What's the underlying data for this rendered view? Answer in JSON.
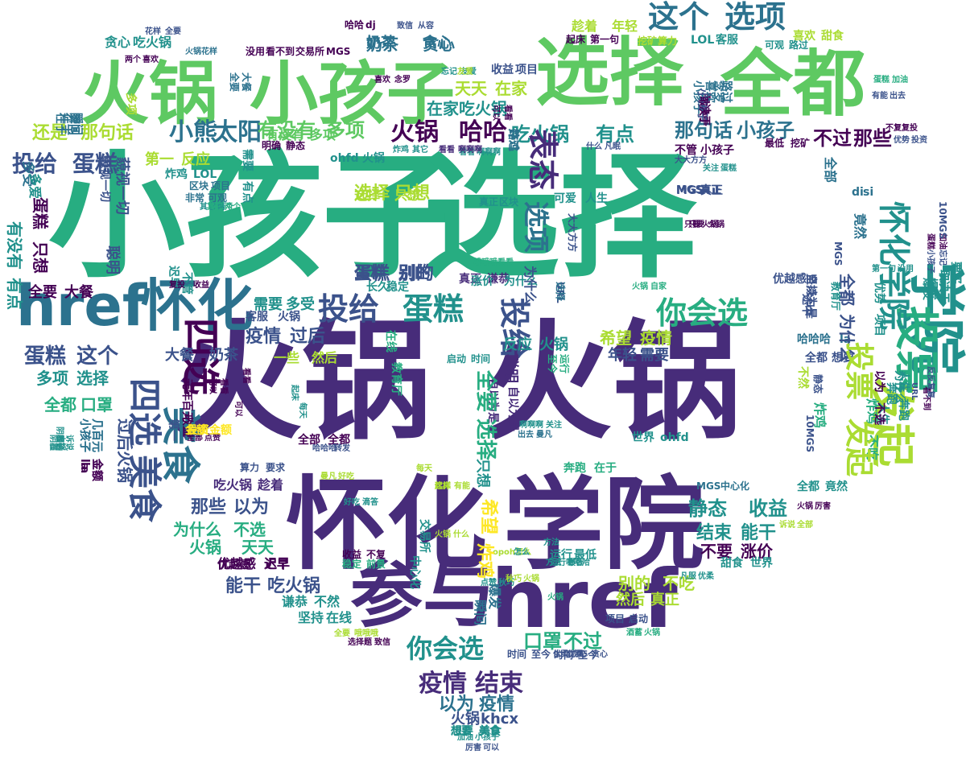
{
  "wordcloud": {
    "palette": {
      "dark_purple": "#440154",
      "indigo": "#472c7a",
      "blue": "#3b528b",
      "steel": "#2c728e",
      "teal": "#21918c",
      "green": "#27ad81",
      "lime": "#5ec962",
      "yellow_green": "#aadc32",
      "yellow": "#fde725"
    },
    "words": {
      "w1": "小孩子",
      "w2": "选择",
      "w3": "火锅",
      "w4": "火锅",
      "w5": "怀化",
      "w6": "学院",
      "w7": "href",
      "w8": "参与",
      "w9": "选择",
      "w10": "全都",
      "w11": "火锅",
      "w12": "小孩子",
      "w13": "href",
      "w14": "怀化",
      "w15": "学院",
      "w16": "发起",
      "w17": "这个",
      "w18": "选项",
      "w19": "投票",
      "w20": "美食",
      "w21": "四选",
      "w22": "你会选",
      "w23": "投给",
      "w24": "蛋糕",
      "w25": "火锅",
      "w26": "哈哈",
      "w27": "小熊",
      "w28": "太阳",
      "w29": "有没有",
      "w30": "多项",
      "w31": "那句话",
      "w32": "小孩子",
      "w33": "吃火锅",
      "w34": "有点",
      "w35": "不过",
      "w36": "那些",
      "w37": "还是",
      "w38": "那句话",
      "w39": "在家",
      "w40": "吃火锅",
      "w41": "天天",
      "w42": "在家",
      "w43": "奶茶",
      "w44": "贪心",
      "w45": "贪心",
      "w46": "吃火锅",
      "w47": "蛋糕",
      "w48": "别的",
      "w49": "选择",
      "w50": "只想",
      "w51": "投给",
      "w52": "你会选",
      "w53": "疫情",
      "w54": "结束",
      "w55": "以为",
      "w56": "疫情",
      "w57": "火锅",
      "w58": "khcx",
      "w59": "想要",
      "w60": "美食",
      "w61": "口罩",
      "w62": "不过",
      "w63": "那些",
      "w64": "以为",
      "w65": "为什么",
      "w66": "不选",
      "w67": "火锅",
      "w68": "天天",
      "w69": "能干",
      "w70": "吃火锅",
      "w71": "谦恭",
      "w72": "不然",
      "w73": "坚持",
      "w74": "在线",
      "w75": "优越感",
      "w76": "迟早",
      "w77": "静态",
      "w78": "收益",
      "w79": "结束",
      "w80": "能干",
      "w81": "不要",
      "w82": "涨价",
      "w83": "别的",
      "w84": "不吃",
      "w85": "然后",
      "w86": "真正",
      "w87": "希望",
      "w88": "疫情",
      "w89": "反应",
      "w90": "火锅",
      "w91": "年轻",
      "w92": "需要",
      "w93": "疫情",
      "w94": "过后",
      "w95": "需要",
      "w96": "多受",
      "w97": "一些",
      "w98": "然后",
      "w99": "大餐",
      "w100": "奶茶",
      "w101": "蛋糕",
      "w102": "这个",
      "w103": "多项",
      "w104": "选择",
      "w105": "全都",
      "w106": "口罩",
      "w107": "全要",
      "w108": "大餐",
      "w109": "投给",
      "w110": "蛋糕",
      "w111": "第一",
      "w112": "反应",
      "w113": "炸鸡",
      "w114": "LOL",
      "w115": "区块",
      "w116": "项目",
      "w117": "非常",
      "w118": "可观",
      "w119": "选择",
      "w120": "只想",
      "w121": "蛋糕",
      "w122": "别的",
      "w123": "真正",
      "w124": "谦恭",
      "w125": "涨价",
      "w126": "为什么",
      "w127": "客服",
      "w128": "火锅",
      "w129": "启动",
      "w130": "时间",
      "w131": "世界",
      "w132": "ohfd",
      "w133": "全部",
      "w134": "全都",
      "w135": "吃火锅",
      "w136": "趁着",
      "w137": "算力",
      "w138": "要求",
      "w139": "奔跑",
      "w140": "在于",
      "w141": "MGS",
      "w142": "中心化",
      "w143": "全都",
      "w144": "竟然",
      "w145": "收益",
      "w146": "不复",
      "w147": "稳定",
      "w148": "前景",
      "w149": "运行",
      "w150": "最低",
      "w151": "优越感",
      "w152": "迟早",
      "w153": "甜食",
      "w154": "世界",
      "w155": "项目",
      "w156": "启动",
      "w157": "时间",
      "w158": "至今",
      "w159": "优柔",
      "w160": "贪心",
      "w161": "MGS",
      "w162": "真正",
      "w163": "收益",
      "w164": "项目",
      "w165": "可爱",
      "w166": "人生",
      "w167": "真正",
      "w168": "区块",
      "w169": "ohfd",
      "w170": "火锅",
      "w171": "看看",
      "w172": "啊啊啊",
      "w173": "明确",
      "w174": "静态",
      "w175": "有没有",
      "w176": "多项",
      "w177": "趁着",
      "w178": "年轻",
      "w179": "挖矿",
      "w180": "算力",
      "w181": "起床",
      "w182": "第一句",
      "w183": "LOL",
      "w184": "客服",
      "w185": "喜欢",
      "w186": "甜食",
      "w187": "可观",
      "w188": "路过",
      "w189": "奶茶",
      "w190": "贪心",
      "w191": "花样",
      "w192": "全要",
      "w193": "致信",
      "w194": "从容",
      "w195": "哈哈",
      "w196": "dj",
      "w197": "没用",
      "w198": "看不到",
      "w199": "交易所",
      "w200": "MGS",
      "w201": "喜欢",
      "w202": "念罗",
      "w203": "炸鸡",
      "w204": "其它",
      "w205": "看看",
      "w206": "啊啊啊",
      "w207": "最低",
      "w208": "挖矿",
      "w209": "不管",
      "w210": "小孩子",
      "w211": "MGS",
      "w212": "真正",
      "w213": "di",
      "w214": "si",
      "w215": "哈哈哈",
      "w216": "la",
      "w217": "全都",
      "w218": "想要",
      "w219": "忘记",
      "w220": "友爱",
      "w221": "两个",
      "w222": "喜欢",
      "w223": "火锅",
      "w224": "花样",
      "w225": "蛋糕",
      "w226": "加油",
      "w227": "有能",
      "w228": "出去",
      "w229": "不复",
      "w230": "复投",
      "w231": "优势",
      "w232": "投资",
      "w233": "什么",
      "w234": "凡眠",
      "w235": "大大方方",
      "w236": "关注",
      "w237": "蛋糕",
      "w238": "只要",
      "w239": "火锅",
      "w240": "火锅",
      "w241": "自家",
      "w242": "哦哦哦",
      "w243": "看看",
      "w244": "其它",
      "w245": "两个",
      "w246": "全部",
      "w247": "点赞",
      "w248": "每天",
      "w249": "起床",
      "w250": "好吃",
      "w251": "滴答",
      "w252": "火锅",
      "w253": "什么",
      "w254": "opoh",
      "w255": "怎么",
      "w256": "运行",
      "w257": "最低",
      "w258": "方法",
      "w259": "哈哈哈",
      "w260": "点赞",
      "w261": "秋巧",
      "w262": "秋巧",
      "w263": "火锅",
      "w264": "凡服",
      "w265": "优柔",
      "w266": "酒蓄",
      "w267": "火锅",
      "w268": "诉说",
      "w269": "全部",
      "w270": "火锅",
      "w271": "厉害",
      "w272": "全要",
      "w273": "哦哦哦",
      "w274": "选择题",
      "w275": "致信",
      "w276": "时间",
      "w277": "至今",
      "w278": "优柔",
      "w279": "贪心",
      "w280": "加油",
      "w281": "小孩子",
      "w282": "厉害",
      "w283": "可以",
      "w284": "想要",
      "w285": "美食",
      "w286": "其它",
      "w287": "两个",
      "w288": "这样",
      "w289": "有能",
      "w290": "曼凡",
      "w291": "好吃",
      "w292": "友爱",
      "w293": "火锅",
      "w294": "怎么",
      "w295": "这样",
      "w296": "哈哈哈",
      "w297": "转发",
      "w298": "每天",
      "w299": "起床",
      "w300": "啊啊啊",
      "w301": "关注",
      "w302": "出去",
      "w303": "曼凡",
      "w304": "可以",
      "w305": "看看",
      "w306": "元年",
      "w307": "百元",
      "w308": "收益",
      "w309": "金额",
      "w310": "投资",
      "w311": "金额",
      "w312": "迟早",
      "w313": "不管",
      "w314": "复投",
      "w315": "收益",
      "w316": "藐视一切",
      "w317": "聪明",
      "w318": "藐视一切",
      "w319": "优越感",
      "w320": "自以为是",
      "w321": "聪明",
      "w322": "为什么",
      "w323": "自以为是",
      "w324": "坚持",
      "w325": "过后",
      "w326": "火锅",
      "w327": "多受",
      "w328": "la",
      "w329": "小孩子",
      "w330": "金额",
      "w331": "几百元",
      "w332": "明确",
      "w333": "诉说",
      "w334": "火锅",
      "w335": "阴霾",
      "w336": "在于",
      "w337": "瞬间",
      "w338": "取决于",
      "w339": "途中",
      "w340": "小孩子",
      "w341": "喜欢",
      "w342": "念罗",
      "w343": "路过",
      "w344": "炸鸡",
      "w345": "长久",
      "w346": "稳定",
      "w347": "不然",
      "w348": "10MGS",
      "w349": "静态",
      "w350": "不吃",
      "w351": "炸鸡",
      "w352": "人生",
      "w353": "奔跑",
      "w354": "看不到",
      "w355": "URL",
      "w356": "反反复复",
      "w357": "方法",
      "w358": "小孩子",
      "w359": "忘记",
      "w360": "蛋糕",
      "w361": "加油",
      "w362": "爆发",
      "w363": "取决于",
      "w364": "要买",
      "w365": "10MGS",
      "w366": "只要",
      "w367": "火锅",
      "w368": "第一句",
      "w369": "没用",
      "w370": "爆发",
      "w371": "取决于",
      "w372": "要买",
      "w373": "全都",
      "w374": "为什么",
      "w375": "竟然",
      "w376": "项目",
      "w377": "优势",
      "w378": "全部",
      "w379": "人生",
      "w380": "奔跑",
      "w381": "有点",
      "w382": "有没有",
      "w383": "多爱",
      "w384": "只想",
      "w385": "蛋糕",
      "w386": "la",
      "w387": "小孩子",
      "w388": "几百元",
      "w389": "金额",
      "w390": "以为",
      "w391": "不选",
      "w392": "为什么",
      "w393": "第一",
      "w394": "需要",
      "w395": "有点",
      "w396": "多项",
      "w397": "全要",
      "w398": "大餐",
      "w399": "中心化",
      "w400": "交易所",
      "w401": "只想",
      "w402": "瞬间",
      "w403": "爆发",
      "w404": "在线",
      "w405": "教育厅",
      "w406": "教育厅",
      "w407": "MGS",
      "w408": "至今",
      "w409": "运行",
      "w410": "URL",
      "w411": "大大方方",
      "w412": "自以为是",
      "w413": "路过",
      "w414": "炸鸡",
      "w415": "可以",
      "w416": "看看",
      "w417": "选择",
      "w418": "全要",
      "w419": "希望",
      "w420": "炸鸡",
      "w421": "表态",
      "w422": "选项",
      "w423": "发起",
      "w424": "投票",
      "w425": "美食",
      "w426": "四选",
      "w427": "怀化",
      "w428": "学院",
      "w429": "小孩子",
      "w430": "选择",
      "w431": "可以",
      "w432": "看看",
      "w433": "在于",
      "w434": "瞬间",
      "w435": "取决于",
      "w436": "阴霾"
    }
  }
}
